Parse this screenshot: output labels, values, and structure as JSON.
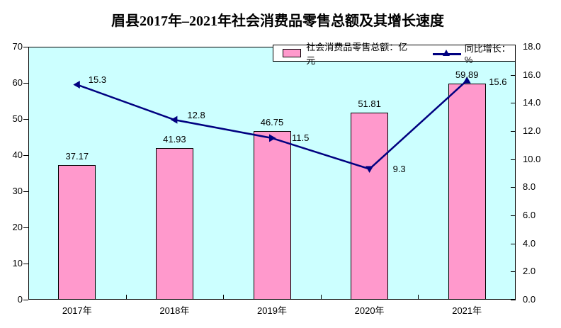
{
  "title": "眉县2017年–2021年社会消费品零售总额及其增长速度",
  "chart_data": {
    "type": "bar+line",
    "title": "眉县2017年–2021年社会消费品零售总额及其增长速度",
    "categories": [
      "2017年",
      "2018年",
      "2019年",
      "2020年",
      "2021年"
    ],
    "series": [
      {
        "name": "社会消费品零售总额：亿元",
        "kind": "bar",
        "axis": "left",
        "values": [
          37.17,
          41.93,
          46.75,
          51.81,
          59.89
        ],
        "data_labels": [
          "37.17",
          "41.93",
          "46.75",
          "51.81",
          "59.89"
        ],
        "color": "#FF99CC"
      },
      {
        "name": "同比增长：%",
        "kind": "line",
        "axis": "right",
        "values": [
          15.3,
          12.8,
          11.5,
          9.3,
          15.6
        ],
        "data_labels": [
          "15.3",
          "12.8",
          "11.5",
          "9.3",
          "15.6"
        ],
        "color": "#000080"
      }
    ],
    "left_axis": {
      "min": 0,
      "max": 70,
      "step": 10,
      "tick_labels": [
        "0",
        "10",
        "20",
        "30",
        "40",
        "50",
        "60",
        "70"
      ]
    },
    "right_axis": {
      "min": 0,
      "max": 18,
      "step": 2,
      "tick_labels": [
        "0.0",
        "2.0",
        "4.0",
        "6.0",
        "8.0",
        "10.0",
        "12.0",
        "14.0",
        "16.0",
        "18.0"
      ]
    },
    "plot_background": "#CCFFFF",
    "outer_background": "#FFFFFF",
    "grid": false,
    "legend_position": "top-inside-right"
  }
}
